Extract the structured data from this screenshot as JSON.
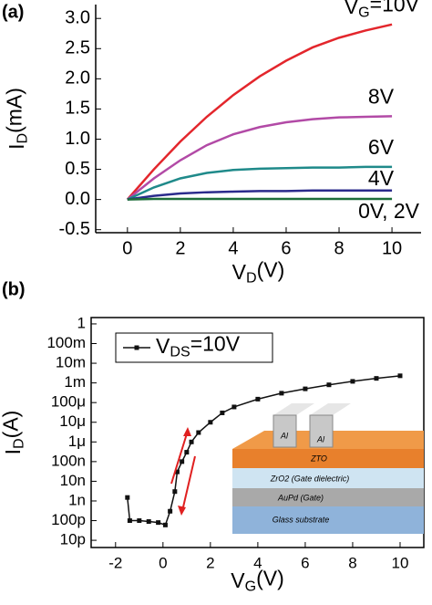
{
  "chart_data": [
    {
      "type": "line",
      "panel_label": "(a)",
      "xlabel": "VD(V)",
      "ylabel": "ID(mA)",
      "x": [
        0,
        1,
        2,
        3,
        4,
        5,
        6,
        7,
        8,
        9,
        10
      ],
      "series": [
        {
          "name": "VG=10V",
          "color": "#e3262c",
          "values": [
            0,
            0.5,
            0.96,
            1.37,
            1.73,
            2.04,
            2.3,
            2.52,
            2.68,
            2.8,
            2.9
          ]
        },
        {
          "name": "8V",
          "color": "#b24aa6",
          "values": [
            0,
            0.35,
            0.65,
            0.9,
            1.08,
            1.2,
            1.28,
            1.33,
            1.36,
            1.37,
            1.38
          ]
        },
        {
          "name": "6V",
          "color": "#1f8a8a",
          "values": [
            0,
            0.2,
            0.35,
            0.44,
            0.49,
            0.51,
            0.52,
            0.53,
            0.53,
            0.54,
            0.54
          ]
        },
        {
          "name": "4V",
          "color": "#2b2b8c",
          "values": [
            0,
            0.06,
            0.1,
            0.12,
            0.13,
            0.14,
            0.14,
            0.15,
            0.15,
            0.15,
            0.15
          ]
        },
        {
          "name": "0V, 2V",
          "color": "#1e6e3a",
          "values": [
            0,
            0.01,
            0.01,
            0.01,
            0.01,
            0.01,
            0.01,
            0.01,
            0.01,
            0.01,
            0.01
          ]
        }
      ],
      "xlim": [
        -1.2,
        11.1
      ],
      "ylim": [
        -0.55,
        3.23
      ],
      "xticks": [
        0,
        2,
        4,
        6,
        8,
        10
      ],
      "yticks": [
        -0.5,
        {
          "value": 0,
          "label": "0.0"
        },
        0.5,
        {
          "value": 1,
          "label": "1.0"
        },
        1.5,
        {
          "value": 2,
          "label": "2.0"
        },
        2.5,
        {
          "value": 3,
          "label": "3.0"
        }
      ]
    },
    {
      "type": "line",
      "panel_label": "(b)",
      "xlabel": "VG(V)",
      "ylabel": "ID(A)",
      "yscale": "log",
      "legend": "upper left",
      "frame": true,
      "x": [
        -1.5,
        -1.4,
        -1.0,
        -0.6,
        -0.2,
        0.1,
        0.3,
        0.5,
        0.6,
        0.8,
        1.0,
        1.2,
        1.5,
        2,
        2.5,
        3,
        4,
        5,
        6,
        7,
        8,
        9,
        10
      ],
      "series": [
        {
          "name": "VDS=10V",
          "color": "#111111",
          "values": [
            1.5e-09,
            1e-10,
            1e-10,
            9e-11,
            8e-11,
            6e-11,
            3e-10,
            3e-09,
            3e-08,
            1e-07,
            3e-07,
            1e-06,
            3e-06,
            1e-05,
            3e-05,
            6e-05,
            0.00015,
            0.0003,
            0.0005,
            0.0008,
            0.0012,
            0.0017,
            0.0023
          ]
        }
      ],
      "xlim": [
        -3.03,
        11.0
      ],
      "ylim": [
        4.3e-12,
        2.1
      ],
      "xticks": [
        -2,
        0,
        2,
        4,
        6,
        8,
        10
      ],
      "yticks": [
        {
          "value": 1e-11,
          "label": "10p"
        },
        {
          "value": 1e-10,
          "label": "100p"
        },
        {
          "value": 1e-09,
          "label": "1n"
        },
        {
          "value": 1e-08,
          "label": "10n"
        },
        {
          "value": 1e-07,
          "label": "100n"
        },
        {
          "value": 1e-06,
          "label": "1μ"
        },
        {
          "value": 1e-05,
          "label": "10μ"
        },
        {
          "value": 0.0001,
          "label": "100μ"
        },
        {
          "value": 0.001,
          "label": "1m"
        },
        {
          "value": 0.01,
          "label": "10m"
        },
        {
          "value": 0.1,
          "label": "100m"
        },
        1
      ],
      "inset_labels": [
        "Al",
        "Al",
        "ZTO",
        "ZrO2 (Gate dielectric)",
        "AuPd (Gate)",
        "Glass substrate"
      ]
    }
  ]
}
